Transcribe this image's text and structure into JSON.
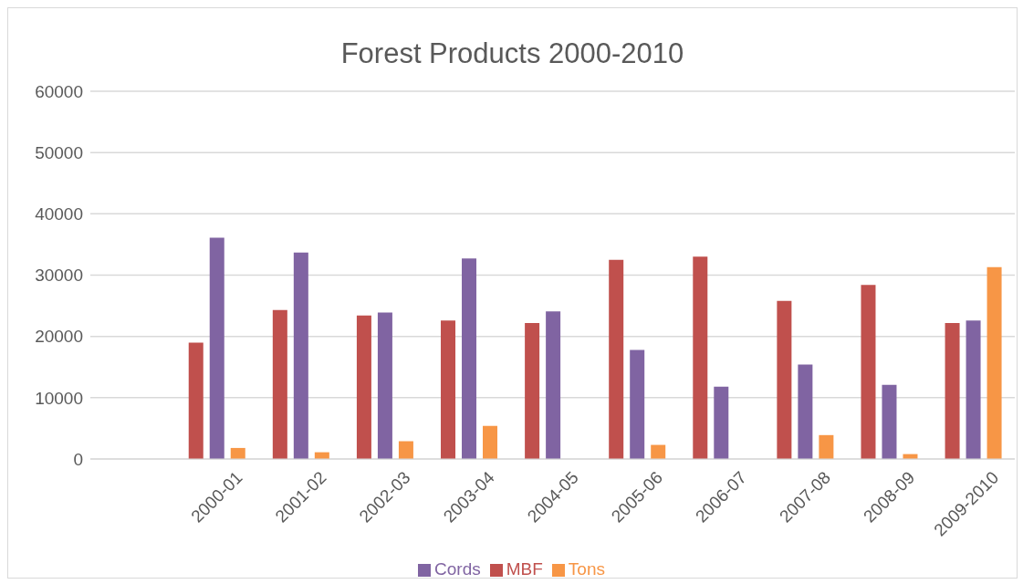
{
  "chart_data": {
    "type": "bar",
    "title": "Forest Products 2000-2010",
    "categories": [
      null,
      "2000-01",
      "2001-02",
      "2002-03",
      "2003-04",
      "2004-05",
      "2005-06",
      "2006-07",
      "2007-08",
      "2008-09",
      "2009-2010"
    ],
    "series": [
      {
        "name": "MBF",
        "color": "#c0504d",
        "values": [
          null,
          19000,
          24300,
          23400,
          22600,
          22200,
          32500,
          33000,
          25800,
          28400,
          22200
        ]
      },
      {
        "name": "Cords",
        "color": "#8064a2",
        "values": [
          null,
          36100,
          33700,
          23900,
          32700,
          24100,
          17800,
          11800,
          15400,
          12100,
          22600
        ]
      },
      {
        "name": "Tons",
        "color": "#f79646",
        "values": [
          null,
          1800,
          1100,
          2900,
          5400,
          null,
          2300,
          null,
          3900,
          800,
          31300
        ]
      }
    ],
    "ylim": [
      0,
      60000
    ],
    "yticks": [
      0,
      10000,
      20000,
      30000,
      40000,
      50000,
      60000
    ],
    "grid": "y",
    "legend": "bottom"
  }
}
